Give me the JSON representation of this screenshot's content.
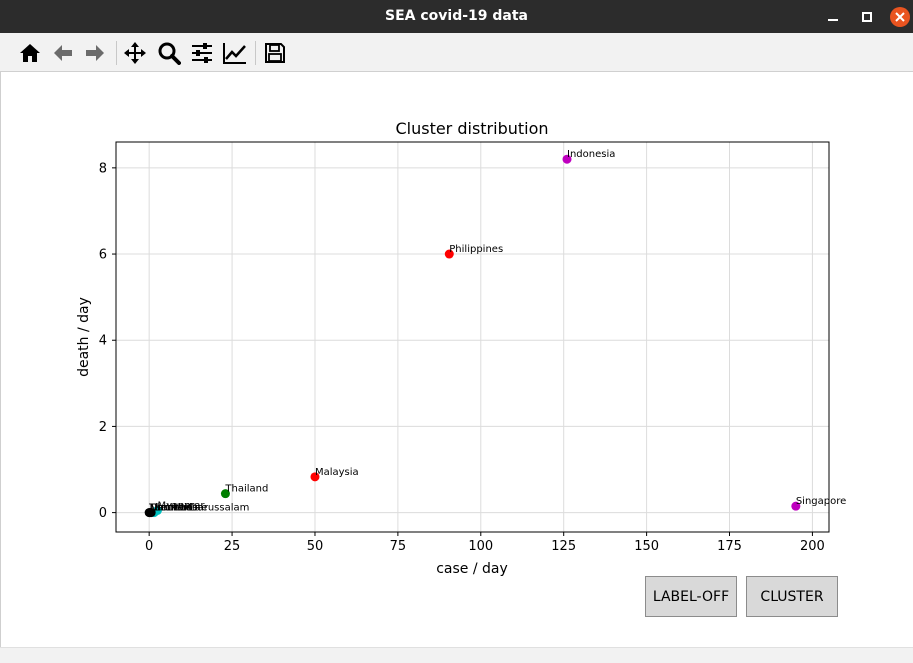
{
  "window": {
    "title": "SEA covid-19 data",
    "controls": [
      "minimize",
      "maximize",
      "close"
    ]
  },
  "toolbar": {
    "tools": [
      "home-icon",
      "back-icon",
      "forward-icon",
      "pan-icon",
      "zoom-icon",
      "configure-subplots-icon",
      "edit-axis-icon",
      "save-icon"
    ]
  },
  "buttons": {
    "label_toggle": "LABEL-OFF",
    "cluster": "CLUSTER"
  },
  "chart_data": {
    "type": "scatter",
    "title": "Cluster distribution",
    "xlabel": "case / day",
    "ylabel": "death / day",
    "xlim": [
      -10,
      205
    ],
    "ylim": [
      -0.45,
      8.6
    ],
    "xticks": [
      "0",
      "25",
      "50",
      "75",
      "100",
      "125",
      "150",
      "175",
      "200"
    ],
    "xtick_values": [
      0,
      25,
      50,
      75,
      100,
      125,
      150,
      175,
      200
    ],
    "yticks": [
      "0",
      "2",
      "4",
      "6",
      "8"
    ],
    "ytick_values": [
      0,
      2,
      4,
      6,
      8
    ],
    "grid": true,
    "points": [
      {
        "label": "Indonesia",
        "x": 126,
        "y": 8.2,
        "color": "#bf00bf"
      },
      {
        "label": "Philippines",
        "x": 90.5,
        "y": 6.0,
        "color": "#ff0000"
      },
      {
        "label": "Malaysia",
        "x": 50,
        "y": 0.83,
        "color": "#ff0000"
      },
      {
        "label": "Thailand",
        "x": 23,
        "y": 0.44,
        "color": "#008000"
      },
      {
        "label": "Singapore",
        "x": 195,
        "y": 0.15,
        "color": "#bf00bf"
      },
      {
        "label": "Myanmar",
        "x": 2.5,
        "y": 0.05,
        "color": "#00bfbf"
      },
      {
        "label": "Brunei Darussalam",
        "x": 1.5,
        "y": 0.0,
        "color": "#00bfbf"
      },
      {
        "label": "Vietnam",
        "x": 0.6,
        "y": 0.0,
        "color": "#000000"
      },
      {
        "label": "Cambodia",
        "x": 0.3,
        "y": 0.0,
        "color": "#000000"
      },
      {
        "label": "Lao PDR",
        "x": 0.1,
        "y": 0.0,
        "color": "#000000"
      },
      {
        "label": "Timor-Leste",
        "x": 0.0,
        "y": 0.0,
        "color": "#000000"
      }
    ]
  }
}
